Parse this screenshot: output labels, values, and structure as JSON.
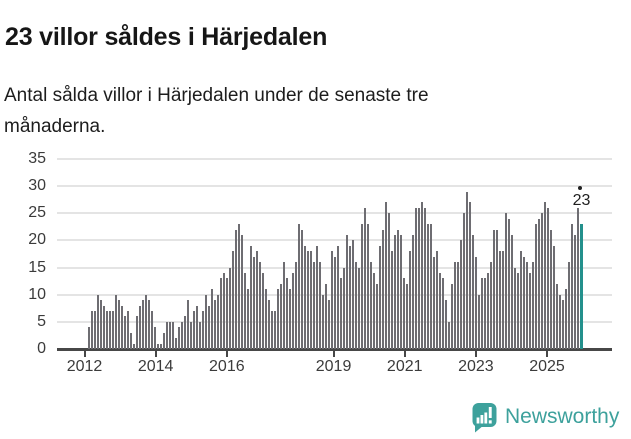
{
  "header": {
    "title": "23 villor såldes i Härjedalen",
    "subtitle": "Antal sålda villor i Härjedalen under de senaste tre månaderna."
  },
  "annotation": {
    "label": "23",
    "has_marker_dot": true
  },
  "footer": {
    "brand": "Newsworthy",
    "logo_icon": "newsworthy-speech-bubble-bar-chart-icon"
  },
  "colors": {
    "bar": "#6e6d72",
    "highlight": "#23908c",
    "grid": "#e4e4e4",
    "axis": "#474747",
    "tick_text": "#3b3b3b",
    "title_text": "#161616",
    "body_text": "#1d1d1d",
    "brand_teal": "#3da19c"
  },
  "chart_data": {
    "type": "bar",
    "title": "23 villor såldes i Härjedalen",
    "subtitle": "Antal sålda villor i Härjedalen under de senaste tre månaderna.",
    "xlabel": "",
    "ylabel": "",
    "unit": "sålda villor (rullande 3 månader)",
    "frequency": "monthly",
    "start": "2012-02",
    "end": "2025-10",
    "ylim": [
      0,
      35
    ],
    "yticks": [
      0,
      5,
      10,
      15,
      20,
      25,
      30,
      35
    ],
    "xtick_years": [
      2012,
      2014,
      2016,
      2019,
      2021,
      2023,
      2025
    ],
    "grid": "horizontal",
    "legend": "none",
    "highlight_last": true,
    "last_value": 23,
    "values": [
      4,
      7,
      7,
      10,
      9,
      8,
      7,
      7,
      7,
      10,
      9,
      8,
      6,
      7,
      3,
      1,
      6,
      8,
      9,
      10,
      9,
      7,
      4,
      1,
      1,
      3,
      5,
      5,
      5,
      2,
      4,
      5,
      6,
      9,
      5,
      7,
      8,
      5,
      7,
      10,
      8,
      11,
      9,
      10,
      13,
      14,
      13,
      15,
      18,
      22,
      23,
      21,
      14,
      11,
      19,
      17,
      18,
      16,
      14,
      11,
      9,
      7,
      7,
      11,
      12,
      16,
      13,
      11,
      14,
      16,
      23,
      22,
      19,
      18,
      18,
      16,
      19,
      16,
      10,
      12,
      9,
      18,
      17,
      19,
      13,
      15,
      21,
      19,
      20,
      16,
      15,
      23,
      26,
      23,
      16,
      14,
      12,
      19,
      22,
      27,
      25,
      18,
      21,
      22,
      21,
      13,
      12,
      18,
      21,
      26,
      26,
      27,
      26,
      23,
      23,
      17,
      18,
      14,
      13,
      9,
      5,
      12,
      16,
      16,
      20,
      25,
      29,
      27,
      21,
      17,
      10,
      13,
      13,
      14,
      16,
      22,
      22,
      18,
      18,
      25,
      24,
      21,
      15,
      14,
      18,
      17,
      16,
      14,
      16,
      23,
      24,
      25,
      27,
      26,
      22,
      19,
      12,
      10,
      9,
      11,
      16,
      23,
      21,
      26,
      23
    ]
  }
}
